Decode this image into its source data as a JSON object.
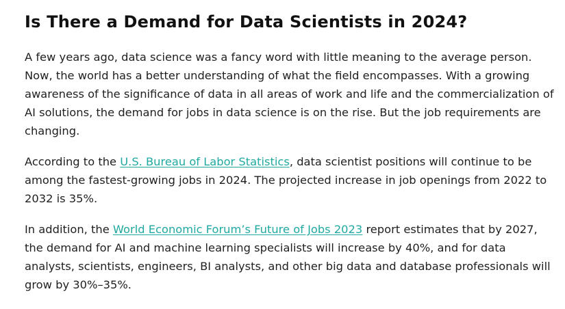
{
  "article": {
    "title": "Is There a Demand for Data Scientists in 2024?",
    "paragraph1": "A few years ago, data science was a fancy word with little meaning to the average person. Now, the world has a better understanding of what the field encompasses. With a growing awareness of the significance of data in all areas of work and life and the commercialization of AI solutions, the demand for jobs in data science is on the rise. But the job requirements are changing.",
    "paragraph2": {
      "before": "According to the ",
      "link_text": "U.S. Bureau of Labor Statistics",
      "after": ", data scientist positions will continue to be among the fastest-growing jobs in 2024. The projected increase in job openings from 2022 to 2032 is 35%."
    },
    "paragraph3": {
      "before": "In addition, the ",
      "link_text": "World Economic Forum’s Future of Jobs 2023",
      "after": " report estimates that by 2027, the demand for AI and machine learning specialists will increase by 40%, and for data analysts, scientists, engineers, BI analysts, and other big data and database professionals will grow by 30%–35%."
    }
  },
  "colors": {
    "link": "#1fa9a0",
    "text": "#1f1f1f",
    "background": "#ffffff"
  }
}
